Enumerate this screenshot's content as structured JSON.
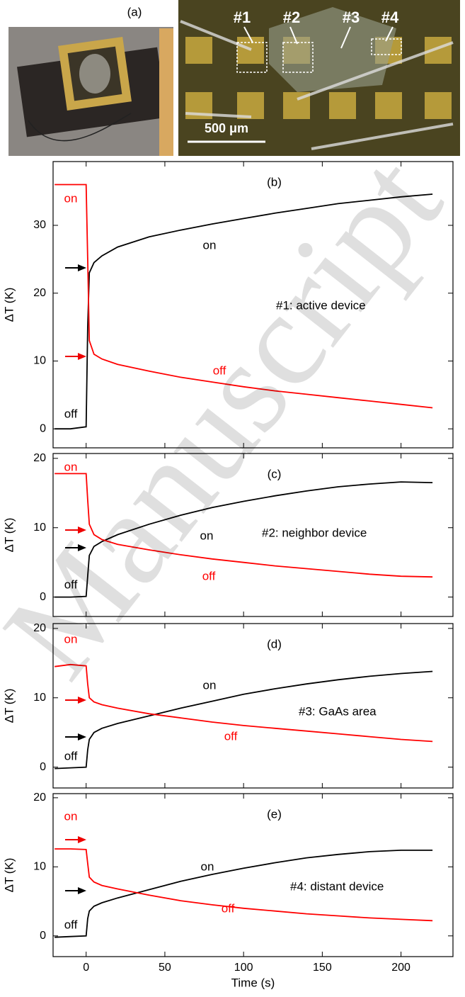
{
  "figure_label": "(a)",
  "photo_labels": [
    "#1",
    "#2",
    "#3",
    "#4"
  ],
  "scale_bar": "500 μm",
  "watermark": "Manuscript",
  "chart_data": [
    {
      "type": "line",
      "panel": "(b)",
      "ylabel": "ΔT (K)",
      "x": [
        -20,
        -10,
        0,
        1,
        2,
        5,
        10,
        20,
        40,
        60,
        80,
        100,
        120,
        140,
        160,
        180,
        200,
        220
      ],
      "series": [
        {
          "name": "on",
          "color": "#000000",
          "values": [
            0,
            0,
            0.3,
            15,
            23,
            24.5,
            25.5,
            26.8,
            28.3,
            29.3,
            30.2,
            31,
            31.8,
            32.5,
            33.2,
            33.7,
            34.2,
            34.6
          ]
        },
        {
          "name": "off",
          "color": "#ff0000",
          "values": [
            36,
            36,
            36,
            25,
            13,
            11,
            10.3,
            9.5,
            8.5,
            7.6,
            6.9,
            6.2,
            5.6,
            5.1,
            4.6,
            4.1,
            3.6,
            3.1
          ]
        }
      ],
      "annotations": [
        {
          "text": "on",
          "color": "#ff0000"
        },
        {
          "text": "on",
          "color": "#000000"
        },
        {
          "text": "#1: active device",
          "color": "#000000"
        },
        {
          "text": "off",
          "color": "#ff0000"
        },
        {
          "text": "off",
          "color": "#000000"
        }
      ],
      "xlim": [
        -21,
        233
      ],
      "xticks": [
        0,
        50,
        100,
        150,
        200
      ],
      "ylim": [
        -2.8,
        39.4
      ],
      "yticks": [
        0,
        10,
        20,
        30
      ]
    },
    {
      "type": "line",
      "panel": "(c)",
      "ylabel": "ΔT (K)",
      "x": [
        -20,
        -10,
        0,
        1,
        2,
        5,
        10,
        20,
        40,
        60,
        80,
        100,
        120,
        140,
        160,
        180,
        200,
        220
      ],
      "series": [
        {
          "name": "on",
          "color": "#000000",
          "values": [
            0,
            0,
            0.1,
            3,
            6,
            7.3,
            8,
            9,
            10.5,
            11.8,
            12.9,
            13.8,
            14.6,
            15.3,
            15.9,
            16.3,
            16.6,
            16.5
          ]
        },
        {
          "name": "off",
          "color": "#ff0000",
          "values": [
            17.8,
            17.8,
            17.8,
            14,
            10.5,
            9,
            8.3,
            7.6,
            6.8,
            6.1,
            5.5,
            5,
            4.5,
            4.1,
            3.7,
            3.3,
            3,
            2.9
          ]
        }
      ],
      "annotations": [
        {
          "text": "on",
          "color": "#ff0000"
        },
        {
          "text": "on",
          "color": "#000000"
        },
        {
          "text": "#2: neighbor device",
          "color": "#000000"
        },
        {
          "text": "off",
          "color": "#ff0000"
        },
        {
          "text": "off",
          "color": "#000000"
        }
      ],
      "xlim": [
        -21,
        233
      ],
      "xticks": [
        0,
        50,
        100,
        150,
        200
      ],
      "ylim": [
        -2.8,
        20.7
      ],
      "yticks": [
        0,
        10,
        20
      ]
    },
    {
      "type": "line",
      "panel": "(d)",
      "ylabel": "ΔT (K)",
      "x": [
        -20,
        -10,
        0,
        1,
        2,
        5,
        10,
        20,
        40,
        60,
        80,
        100,
        120,
        140,
        160,
        180,
        200,
        220
      ],
      "series": [
        {
          "name": "on",
          "color": "#000000",
          "values": [
            -0.2,
            -0.1,
            0,
            2.5,
            4,
            5,
            5.6,
            6.3,
            7.4,
            8.5,
            9.5,
            10.5,
            11.3,
            12,
            12.6,
            13.1,
            13.5,
            13.8
          ]
        },
        {
          "name": "off",
          "color": "#ff0000",
          "values": [
            14.5,
            14.8,
            14.6,
            12,
            10,
            9.4,
            9,
            8.5,
            7.7,
            7.1,
            6.5,
            6,
            5.6,
            5.2,
            4.8,
            4.4,
            4,
            3.7
          ]
        }
      ],
      "annotations": [
        {
          "text": "on",
          "color": "#ff0000"
        },
        {
          "text": "on",
          "color": "#000000"
        },
        {
          "text": "#3: GaAs area",
          "color": "#000000"
        },
        {
          "text": "off",
          "color": "#ff0000"
        },
        {
          "text": "off",
          "color": "#000000"
        }
      ],
      "xlim": [
        -21,
        233
      ],
      "xticks": [
        0,
        50,
        100,
        150,
        200
      ],
      "ylim": [
        -3,
        20.7
      ],
      "yticks": [
        0,
        10,
        20
      ]
    },
    {
      "type": "line",
      "panel": "(e)",
      "ylabel": "ΔT (K)",
      "xlabel": "Time (s)",
      "show_xtick_labels": true,
      "x": [
        -20,
        -10,
        0,
        1,
        2,
        5,
        10,
        20,
        40,
        60,
        80,
        100,
        120,
        140,
        160,
        180,
        200,
        220
      ],
      "series": [
        {
          "name": "on",
          "color": "#000000",
          "values": [
            -0.2,
            -0.1,
            0,
            2.5,
            3.6,
            4.3,
            4.8,
            5.5,
            6.7,
            7.9,
            8.9,
            9.8,
            10.6,
            11.3,
            11.8,
            12.2,
            12.4,
            12.4
          ]
        },
        {
          "name": "off",
          "color": "#ff0000",
          "values": [
            12.6,
            12.6,
            12.5,
            10.5,
            8.5,
            7.8,
            7.3,
            6.8,
            5.9,
            5.1,
            4.5,
            4,
            3.6,
            3.2,
            2.9,
            2.6,
            2.4,
            2.2
          ]
        }
      ],
      "annotations": [
        {
          "text": "on",
          "color": "#ff0000"
        },
        {
          "text": "on",
          "color": "#000000"
        },
        {
          "text": "#4: distant device",
          "color": "#000000"
        },
        {
          "text": "off",
          "color": "#ff0000"
        },
        {
          "text": "off",
          "color": "#000000"
        }
      ],
      "xlim": [
        -21,
        233
      ],
      "xticks": [
        0,
        50,
        100,
        150,
        200
      ],
      "ylim": [
        -3,
        20.6
      ],
      "yticks": [
        0,
        10,
        20
      ]
    }
  ]
}
